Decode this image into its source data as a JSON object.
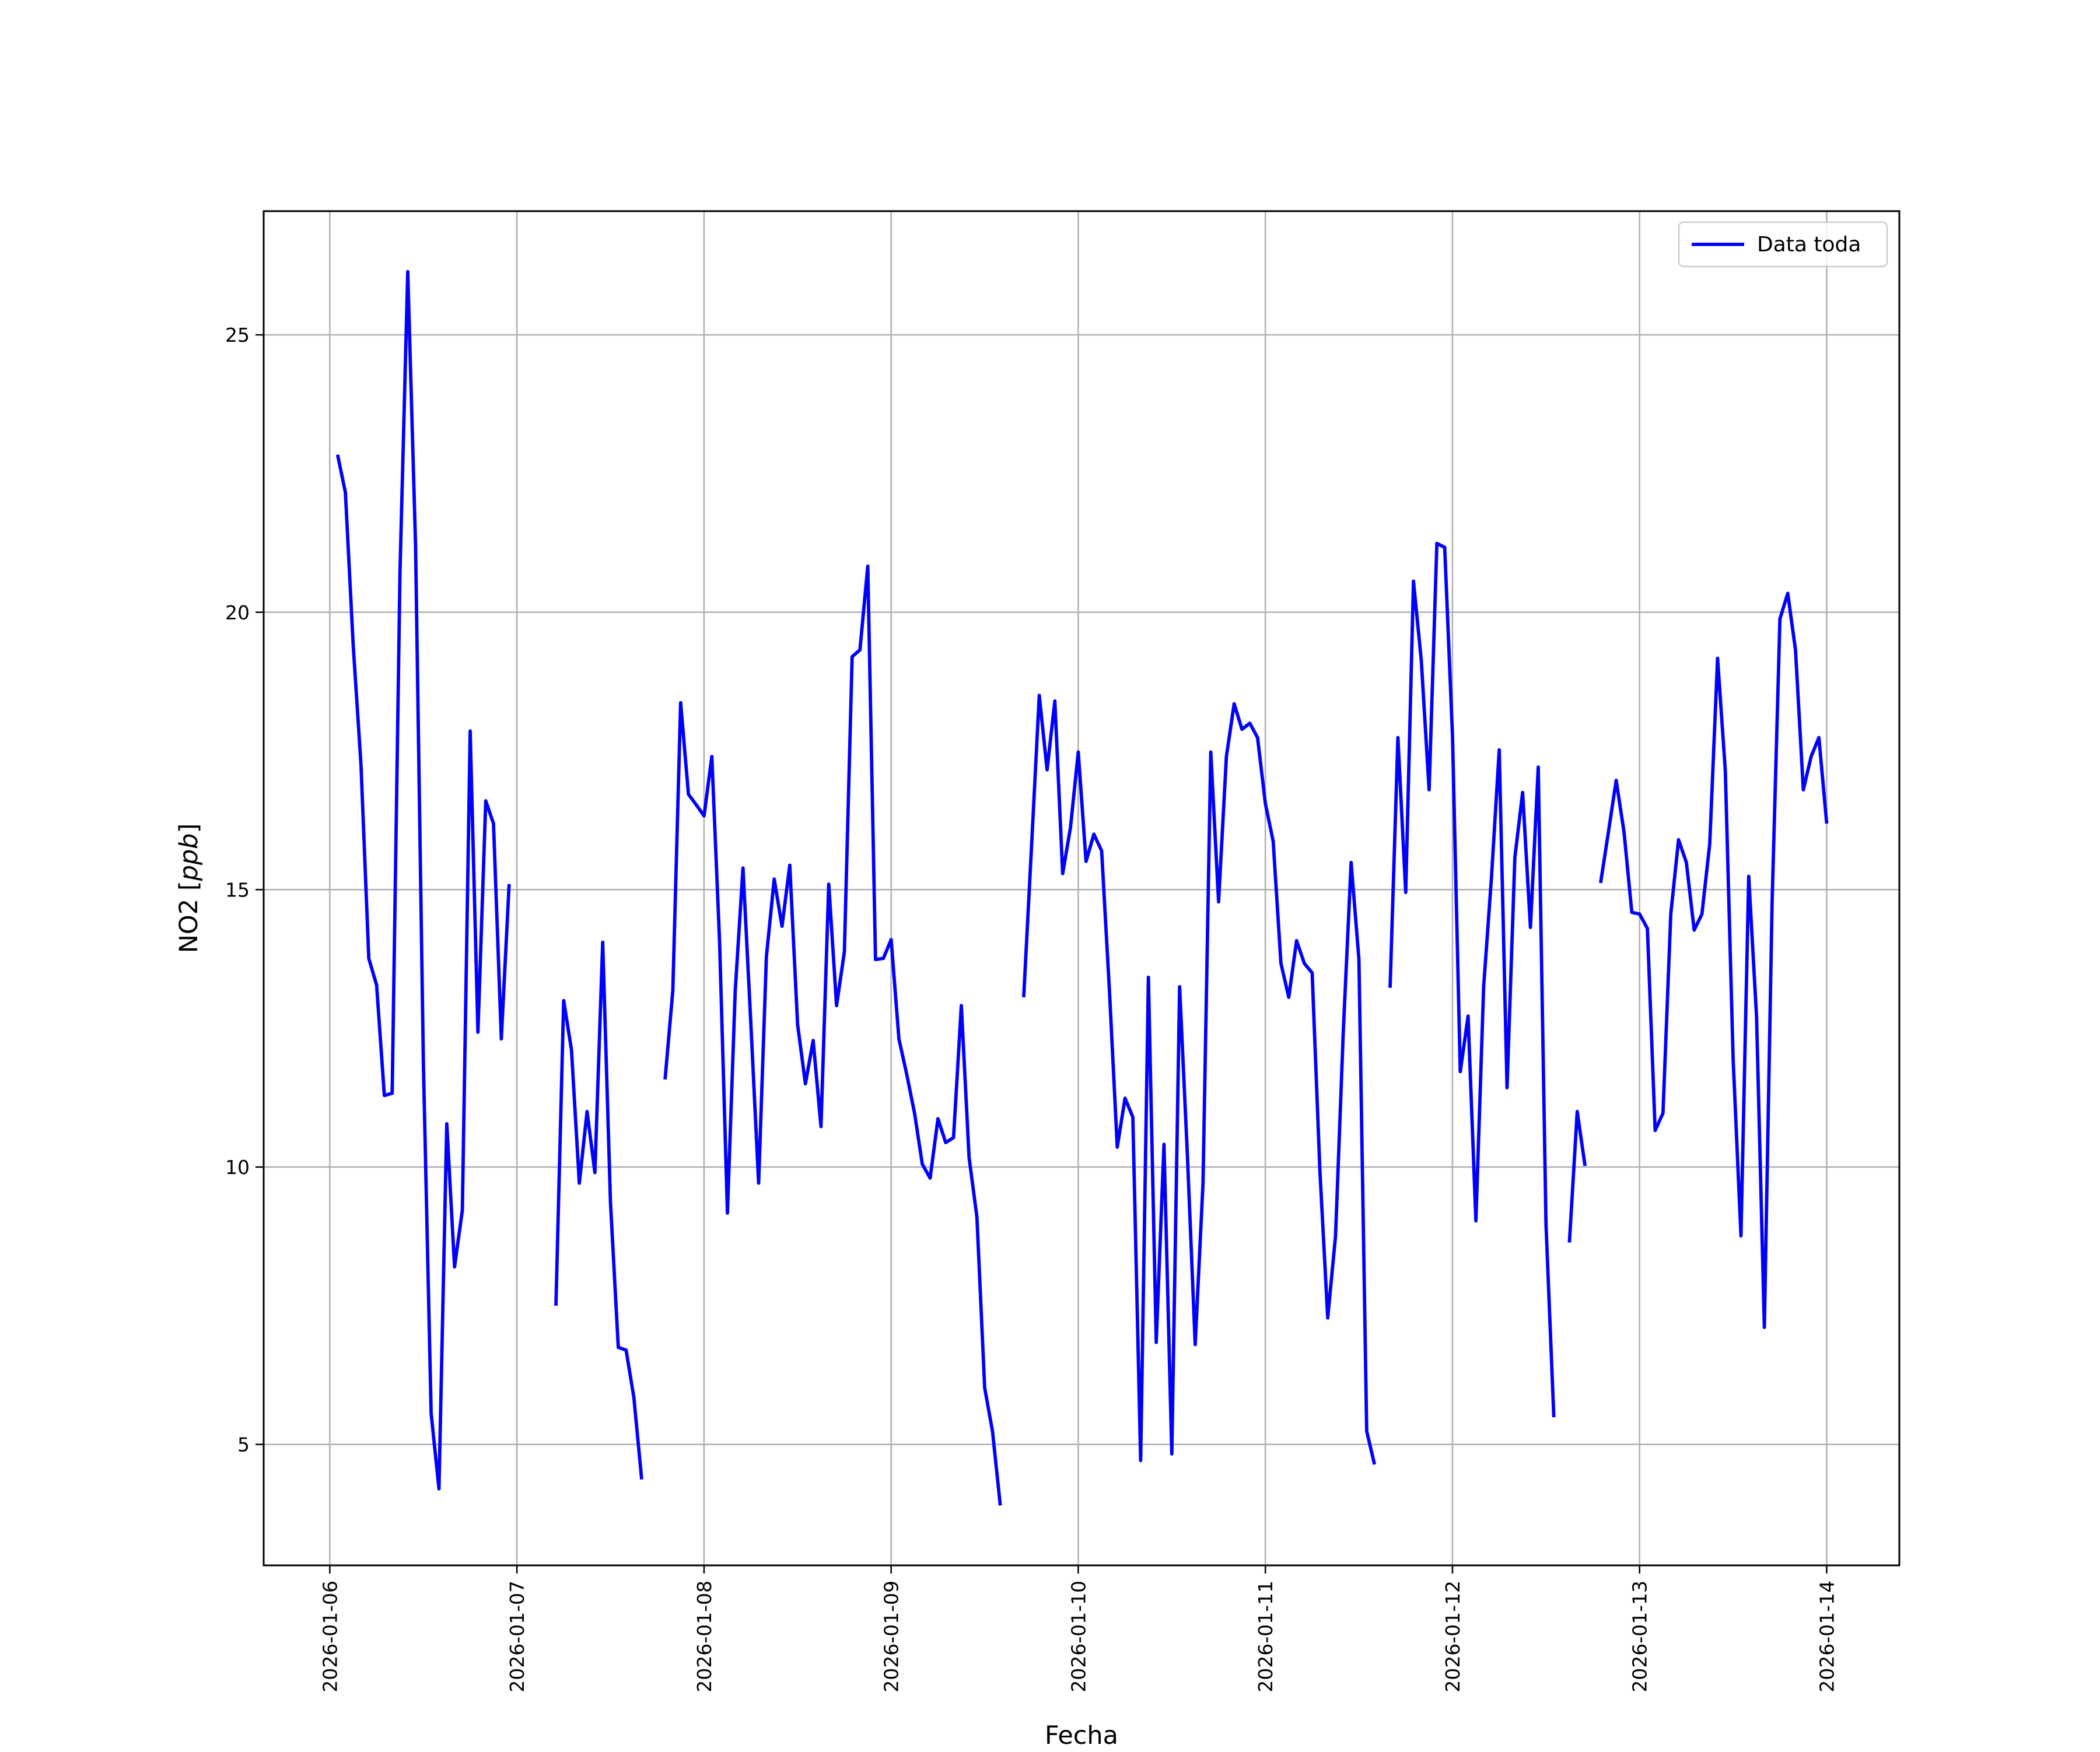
{
  "chart_data": {
    "type": "line",
    "title": "",
    "xlabel": "Fecha",
    "ylabel": "NO2 [ppb]",
    "ylabel_math": "ppb",
    "ylabel_prefix": "NO2 [",
    "ylabel_suffix": "]",
    "xlim": [
      "2026-01-05 15:31",
      "2026-01-14 09:19"
    ],
    "ylim": [
      2.82,
      27.23
    ],
    "grid": true,
    "legend_placement": "top-right",
    "x_ticks": [
      "2026-01-06",
      "2026-01-07",
      "2026-01-08",
      "2026-01-09",
      "2026-01-10",
      "2026-01-11",
      "2026-01-12",
      "2026-01-13",
      "2026-01-14"
    ],
    "y_ticks": [
      5,
      10,
      15,
      20,
      25
    ],
    "colors": {
      "series": "#0000ff",
      "grid": "#b0b0b0",
      "axes": "#000000"
    },
    "series": [
      {
        "name": "Data toda",
        "segments": [
          {
            "start": "2026-01-06 01:00",
            "step": "1h",
            "values": [
              22.84,
              22.16,
              19.4,
              17.26,
              13.76,
              13.28,
              11.29,
              11.33,
              20.73,
              26.14,
              21.2,
              11.87,
              5.56,
              4.2,
              10.78,
              8.2,
              9.22,
              17.86,
              12.43,
              16.6,
              16.19,
              12.31,
              15.1
            ]
          },
          {
            "start": "2026-01-07 05:00",
            "step": "1h",
            "values": [
              7.5,
              13.0,
              12.11,
              9.71,
              11.0,
              9.9,
              14.05,
              9.37,
              6.75,
              6.7,
              5.85,
              4.37
            ]
          },
          {
            "start": "2026-01-07 19:00",
            "step": "1h",
            "values": [
              11.58,
              13.18,
              18.37,
              16.72,
              16.53,
              16.33,
              17.4,
              14.05,
              9.17,
              13.18,
              15.39,
              12.6,
              9.71,
              13.79,
              15.19,
              14.34,
              15.44,
              12.57,
              11.5,
              12.28,
              10.73,
              15.1,
              12.91,
              13.88,
              19.2,
              19.32,
              20.83,
              13.74,
              13.76,
              14.1,
              12.31,
              11.67,
              10.97,
              10.05,
              9.8,
              10.87,
              10.44,
              10.53,
              12.91,
              10.17,
              9.1,
              6.02,
              5.24,
              3.9
            ]
          },
          {
            "start": "2026-01-09 17:00",
            "step": "1h",
            "values": [
              13.06,
              15.75,
              18.5,
              17.16,
              18.4,
              15.29,
              16.12,
              17.48,
              15.51,
              16.0,
              15.7,
              13.18,
              10.36,
              11.24,
              10.9,
              4.71,
              13.42,
              6.84,
              10.41,
              4.83,
              13.25,
              10.22,
              6.8,
              9.71,
              17.48,
              14.78,
              17.4,
              18.35,
              17.89,
              18.0,
              17.74,
              16.55,
              15.87,
              13.67,
              13.06,
              14.08,
              13.67,
              13.5,
              9.93,
              7.28,
              8.76,
              12.45,
              15.49,
              13.74,
              5.24,
              4.64
            ]
          },
          {
            "start": "2026-01-11 16:00",
            "step": "1h",
            "values": [
              13.23,
              17.74,
              14.95,
              20.56,
              19.13,
              16.8,
              21.24,
              21.17,
              17.77,
              11.72,
              12.72,
              9.03,
              13.25,
              15.22,
              17.52,
              11.43,
              15.58,
              16.75,
              14.32,
              17.21,
              8.96,
              5.49
            ]
          },
          {
            "start": "2026-01-12 15:00",
            "step": "1h",
            "values": [
              8.64,
              11.0,
              10.02
            ]
          },
          {
            "start": "2026-01-12 19:00",
            "step": "1h",
            "values": [
              15.12,
              16.04,
              16.97,
              16.04,
              14.59,
              14.56,
              14.3,
              10.66,
              10.97,
              14.56,
              15.9,
              15.49,
              14.27,
              14.56,
              15.83,
              19.17,
              17.14,
              11.94,
              8.76,
              15.24,
              12.72,
              7.11,
              14.78,
              19.88,
              20.34,
              19.32,
              16.8,
              17.4,
              17.74,
              16.19
            ]
          }
        ]
      }
    ]
  }
}
